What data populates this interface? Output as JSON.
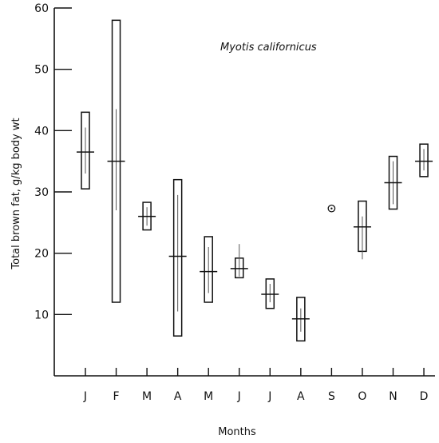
{
  "chart_data": {
    "type": "range_box",
    "title": "Myotis californicus",
    "xlabel": "Months",
    "ylabel": "Total brown fat,    g/kg body wt",
    "ylim": [
      0,
      60
    ],
    "yticks": [
      10,
      20,
      30,
      40,
      50,
      60
    ],
    "categories": [
      "J",
      "F",
      "M",
      "A",
      "M",
      "J",
      "J",
      "A",
      "S",
      "O",
      "N",
      "D"
    ],
    "series": [
      {
        "mean": [
          36.5,
          35.0,
          26.0,
          19.5,
          17.0,
          17.5,
          13.3,
          9.3,
          27.3,
          24.3,
          31.5,
          35.0
        ],
        "min": [
          30.5,
          12.0,
          23.8,
          6.5,
          12.0,
          16.0,
          11.0,
          5.7,
          null,
          20.3,
          27.2,
          32.5
        ],
        "max": [
          43.0,
          58.0,
          28.3,
          32.0,
          22.7,
          19.2,
          15.8,
          12.8,
          null,
          28.5,
          35.8,
          37.8
        ],
        "sd_low": [
          33.0,
          27.0,
          24.5,
          10.5,
          13.5,
          16.2,
          12.0,
          7.2,
          null,
          19.0,
          28.0,
          33.5
        ],
        "sd_high": [
          40.5,
          43.5,
          27.5,
          29.5,
          21.0,
          21.5,
          15.0,
          11.0,
          null,
          26.0,
          35.0,
          37.0
        ]
      }
    ],
    "single_points": [
      {
        "category_index": 8,
        "value": 27.3,
        "marker": "circle-dot"
      }
    ],
    "grid": false,
    "legend": "none"
  }
}
